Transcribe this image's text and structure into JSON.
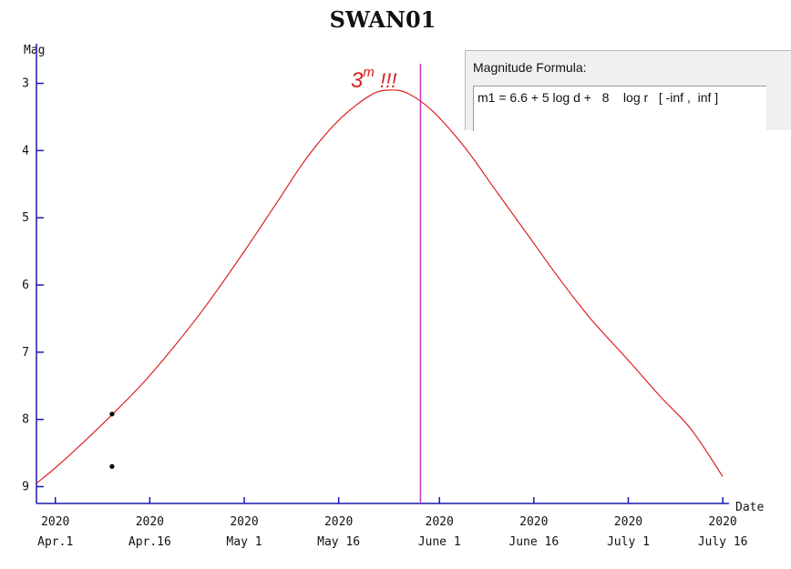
{
  "chart_data": {
    "type": "line",
    "title": "SWAN01",
    "ylabel": "Mag",
    "xlabel": "Date",
    "ylim": [
      9.25,
      2.6
    ],
    "y_inverted": true,
    "y_ticks": [
      3,
      4,
      5,
      6,
      7,
      8,
      9
    ],
    "x_ticks": [
      {
        "date": "2020-04-01",
        "year": "2020",
        "label": "Apr.1"
      },
      {
        "date": "2020-04-16",
        "year": "2020",
        "label": "Apr.16"
      },
      {
        "date": "2020-05-01",
        "year": "2020",
        "label": "May 1"
      },
      {
        "date": "2020-05-16",
        "year": "2020",
        "label": "May 16"
      },
      {
        "date": "2020-06-01",
        "year": "2020",
        "label": "June 1"
      },
      {
        "date": "2020-06-16",
        "year": "2020",
        "label": "June 16"
      },
      {
        "date": "2020-07-01",
        "year": "2020",
        "label": "July 1"
      },
      {
        "date": "2020-07-16",
        "year": "2020",
        "label": "July 16"
      }
    ],
    "xlim": [
      "2020-03-29",
      "2020-07-17"
    ],
    "series": [
      {
        "color": "#e02020",
        "x": [
          "2020-03-29",
          "2020-04-01",
          "2020-04-05",
          "2020-04-10",
          "2020-04-15",
          "2020-04-20",
          "2020-04-25",
          "2020-05-01",
          "2020-05-06",
          "2020-05-11",
          "2020-05-16",
          "2020-05-21",
          "2020-05-24",
          "2020-05-27",
          "2020-05-31",
          "2020-06-05",
          "2020-06-10",
          "2020-06-15",
          "2020-06-20",
          "2020-06-25",
          "2020-07-01",
          "2020-07-06",
          "2020-07-11",
          "2020-07-16"
        ],
        "y": [
          8.95,
          8.72,
          8.38,
          7.93,
          7.45,
          6.9,
          6.3,
          5.5,
          4.8,
          4.1,
          3.55,
          3.18,
          3.1,
          3.15,
          3.42,
          3.95,
          4.6,
          5.25,
          5.9,
          6.5,
          7.12,
          7.65,
          8.15,
          8.85
        ]
      }
    ],
    "observations": {
      "color": "#000000",
      "x": [
        "2020-04-10",
        "2020-04-10"
      ],
      "y": [
        7.92,
        8.7
      ]
    },
    "marker_line": {
      "date": "2020-05-29",
      "color": "#cc33cc"
    },
    "annotation": {
      "base": "3",
      "superscript": "m",
      "suffix": " !!!",
      "color": "#d42020"
    },
    "axis_color": "#1a1ab0"
  },
  "formula_panel": {
    "heading": "Magnitude Formula:",
    "formula": "m1 = 6.6 + 5 log d +   8    log r   [ -inf ,  inf ]"
  }
}
